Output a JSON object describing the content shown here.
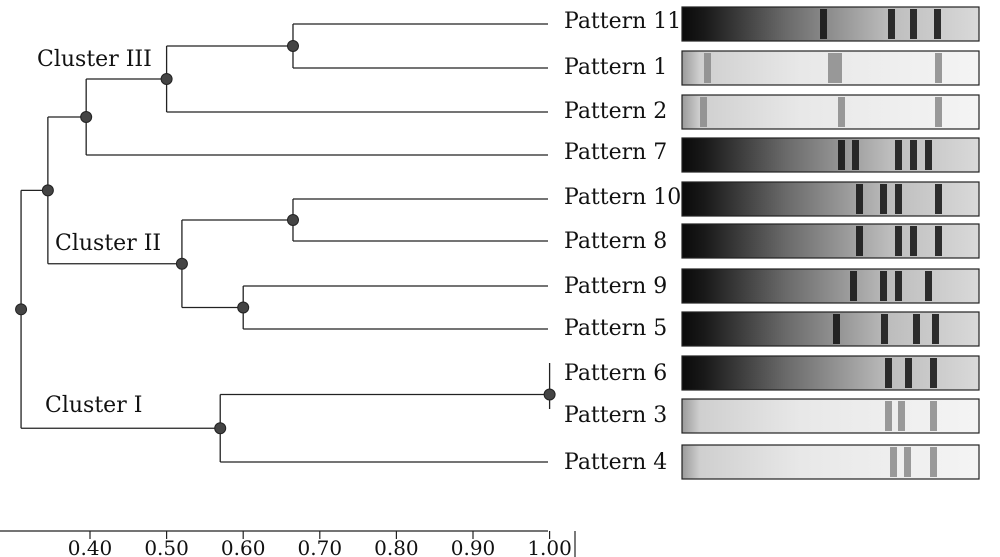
{
  "clusters": [
    {
      "id": "III",
      "label": "Cluster III"
    },
    {
      "id": "II",
      "label": "Cluster II"
    },
    {
      "id": "I",
      "label": "Cluster I"
    }
  ],
  "patterns": [
    {
      "label": "Pattern 11",
      "tone": "dark"
    },
    {
      "label": "Pattern 1",
      "tone": "light"
    },
    {
      "label": "Pattern 2",
      "tone": "light"
    },
    {
      "label": "Pattern 7",
      "tone": "dark"
    },
    {
      "label": "Pattern 10",
      "tone": "dark"
    },
    {
      "label": "Pattern 8",
      "tone": "dark"
    },
    {
      "label": "Pattern 9",
      "tone": "dark"
    },
    {
      "label": "Pattern 5",
      "tone": "dark"
    },
    {
      "label": "Pattern 6",
      "tone": "dark"
    },
    {
      "label": "Pattern 3",
      "tone": "light"
    },
    {
      "label": "Pattern 4",
      "tone": "light"
    }
  ],
  "merges": [
    {
      "a": "Pattern 11",
      "b": "Pattern 1",
      "similarity": 0.665
    },
    {
      "a": "Pattern 6",
      "b": "Pattern 3",
      "similarity": 1.0
    },
    {
      "a": "Pattern 10",
      "b": "Pattern 8",
      "similarity": 0.665
    },
    {
      "a": "Pattern 9",
      "b": "Pattern 5",
      "similarity": 0.6
    },
    {
      "a": "Pattern 11+1",
      "b": "Pattern 2",
      "similarity": 0.5
    },
    {
      "a": "Pattern 11+1+2",
      "b": "Pattern 7",
      "similarity": 0.395
    },
    {
      "a": "Pattern 10+8",
      "b": "Pattern 9+5",
      "similarity": 0.52
    },
    {
      "a": "Pattern 6+3",
      "b": "Pattern 4",
      "similarity": 0.57
    },
    {
      "a": "Cluster III",
      "b": "Cluster II",
      "similarity": 0.345
    },
    {
      "a": "Cluster III+II",
      "b": "Cluster I",
      "similarity": 0.31
    }
  ],
  "axis": {
    "ticks": [
      "0.40",
      "0.50",
      "0.60",
      "0.70",
      "0.80",
      "0.90",
      "1.00"
    ],
    "tick_values": [
      0.4,
      0.5,
      0.6,
      0.7,
      0.8,
      0.9,
      1.0
    ]
  }
}
